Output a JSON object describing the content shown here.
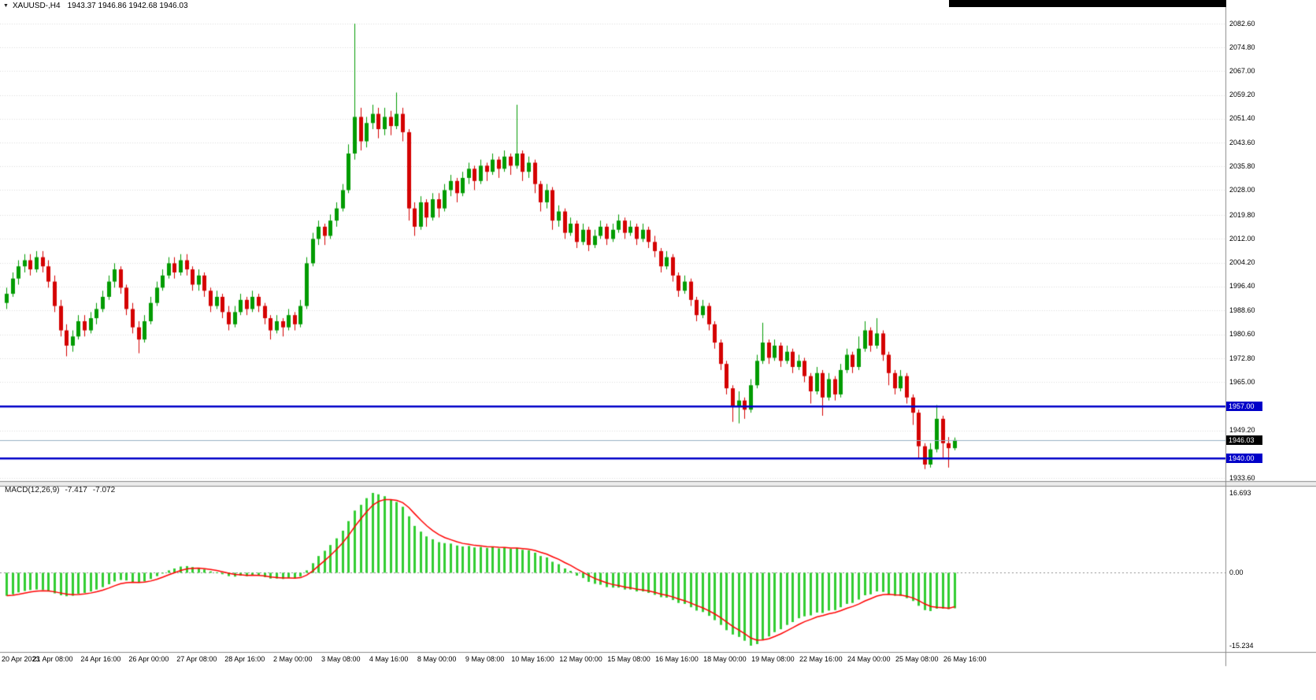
{
  "header": {
    "symbol_period": "XAUUSD-,H4",
    "ohlc_text": "1943.37 1946.86 1942.68 1946.03"
  },
  "colors": {
    "background": "#ffffff",
    "bull": "#009b00",
    "bear": "#d40000",
    "hline": "#0000c8",
    "hline_tag_bg": "#0000c8",
    "current_tag_bg": "#000000",
    "current_line": "#97b0c4",
    "grid": "#dcdcdc",
    "macd_hist": "#32cd32",
    "macd_signal": "#ff0000",
    "zero_line": "#8c8c8c",
    "separator": "#8a8a8a",
    "divider_fill": "#ececec",
    "axis_text": "#000000",
    "top_strip": "#000000"
  },
  "macd_panel": {
    "label": "MACD(12,26,9)",
    "value_main": "-7.417",
    "value_signal": "-7.072",
    "scale": {
      "max": "16.693",
      "zero": "0.00",
      "min": "-15.234"
    }
  },
  "chart_data": {
    "type": "candlestick",
    "title": "XAUUSD-,H4",
    "symbol": "XAUUSD-",
    "timeframe": "H4",
    "current_bar": {
      "open": 1943.37,
      "high": 1946.86,
      "low": 1942.68,
      "close": 1946.03
    },
    "y_axis": {
      "top": 2082.6,
      "bottom": 1933.6,
      "tick_labels": [
        "2082.60",
        "2074.80",
        "2067.00",
        "2059.20",
        "2051.40",
        "2043.60",
        "2035.80",
        "2028.00",
        "2019.80",
        "2012.00",
        "2004.20",
        "1996.40",
        "1988.60",
        "1980.60",
        "1972.80",
        "1965.00",
        "1949.20",
        "1933.60"
      ]
    },
    "x_axis": {
      "bars_per_label": 8,
      "tick_labels": [
        "20 Apr 2023",
        "21 Apr 08:00",
        "24 Apr 16:00",
        "26 Apr 00:00",
        "27 Apr 08:00",
        "28 Apr 16:00",
        "2 May 00:00",
        "3 May 08:00",
        "4 May 16:00",
        "8 May 00:00",
        "9 May 08:00",
        "10 May 16:00",
        "12 May 00:00",
        "15 May 08:00",
        "16 May 16:00",
        "18 May 00:00",
        "19 May 08:00",
        "22 May 16:00",
        "24 May 00:00",
        "25 May 08:00",
        "26 May 16:00"
      ]
    },
    "levels": {
      "horizontal_lines": [
        {
          "price": 1957.0,
          "label": "1957.00"
        },
        {
          "price": 1940.0,
          "label": "1940.00"
        }
      ],
      "current_price": {
        "price": 1946.03,
        "label": "1946.03"
      }
    },
    "candles": [
      [
        1991,
        1996,
        1989,
        1994
      ],
      [
        1994,
        2001,
        1993,
        1999
      ],
      [
        1999,
        2005,
        1997,
        2003
      ],
      [
        2003,
        2007,
        2001,
        2005
      ],
      [
        2005,
        2007,
        2000,
        2002
      ],
      [
        2002,
        2008,
        2001,
        2006
      ],
      [
        2006,
        2008,
        2001,
        2003
      ],
      [
        2003,
        2005,
        1996,
        1998
      ],
      [
        1998,
        2000,
        1988,
        1990
      ],
      [
        1990,
        1992,
        1980,
        1982
      ],
      [
        1982,
        1984,
        1973.5,
        1977
      ],
      [
        1977,
        1982,
        1975,
        1980
      ],
      [
        1980,
        1987,
        1979,
        1985
      ],
      [
        1985,
        1987,
        1980,
        1982
      ],
      [
        1982,
        1988,
        1981,
        1986
      ],
      [
        1986,
        1991,
        1984,
        1989
      ],
      [
        1989,
        1995,
        1988,
        1993
      ],
      [
        1993,
        2000,
        1992,
        1998
      ],
      [
        1998,
        2004,
        1996,
        2002
      ],
      [
        2002,
        2003,
        1994,
        1996
      ],
      [
        1996,
        1997,
        1987,
        1989
      ],
      [
        1989,
        1991,
        1981,
        1983
      ],
      [
        1983,
        1985,
        1974.5,
        1979
      ],
      [
        1979,
        1987,
        1978,
        1985
      ],
      [
        1985,
        1993,
        1984,
        1991
      ],
      [
        1991,
        1998,
        1990,
        1996
      ],
      [
        1996,
        2002,
        1995,
        2000
      ],
      [
        2000,
        2006,
        1999,
        2004
      ],
      [
        2004,
        2006,
        1999,
        2001
      ],
      [
        2001,
        2007,
        2000,
        2005
      ],
      [
        2005,
        2007,
        2000,
        2002
      ],
      [
        2002,
        2003,
        1995,
        1997
      ],
      [
        1997,
        2002,
        1995,
        2000
      ],
      [
        2000,
        2001,
        1993,
        1995
      ],
      [
        1995,
        1996,
        1988,
        1990
      ],
      [
        1990,
        1995,
        1989,
        1993
      ],
      [
        1993,
        1994,
        1986,
        1988
      ],
      [
        1988,
        1990,
        1982,
        1984
      ],
      [
        1984,
        1990,
        1983,
        1988
      ],
      [
        1988,
        1994,
        1987,
        1992
      ],
      [
        1992,
        1993,
        1987,
        1989
      ],
      [
        1989,
        1995,
        1988,
        1993
      ],
      [
        1993,
        1994,
        1988,
        1990
      ],
      [
        1990,
        1991,
        1984,
        1986
      ],
      [
        1986,
        1987,
        1979,
        1982
      ],
      [
        1982,
        1987,
        1981,
        1985
      ],
      [
        1985,
        1986,
        1980,
        1983
      ],
      [
        1983,
        1989,
        1982,
        1987
      ],
      [
        1987,
        1988,
        1982,
        1984
      ],
      [
        1984,
        1992,
        1983,
        1990
      ],
      [
        1990,
        2006,
        1989,
        2004
      ],
      [
        2004,
        2014,
        2003,
        2012
      ],
      [
        2012,
        2018,
        2010,
        2016
      ],
      [
        2016,
        2017,
        2010,
        2013
      ],
      [
        2013,
        2020,
        2012,
        2018
      ],
      [
        2018,
        2024,
        2016,
        2022
      ],
      [
        2022,
        2030,
        2021,
        2028
      ],
      [
        2028,
        2043,
        2027,
        2040
      ],
      [
        2040,
        2082.6,
        2038,
        2052
      ],
      [
        2052,
        2055,
        2041,
        2044
      ],
      [
        2044,
        2052,
        2042,
        2050
      ],
      [
        2050,
        2056,
        2048,
        2053
      ],
      [
        2053,
        2055,
        2045,
        2048
      ],
      [
        2048,
        2055,
        2046,
        2052
      ],
      [
        2052,
        2054,
        2046,
        2049
      ],
      [
        2049,
        2060,
        2048,
        2053
      ],
      [
        2053,
        2055,
        2044,
        2047
      ],
      [
        2047,
        2048,
        2018,
        2022
      ],
      [
        2022,
        2024,
        2013,
        2016
      ],
      [
        2016,
        2026,
        2015,
        2024
      ],
      [
        2024,
        2025,
        2016,
        2019
      ],
      [
        2019,
        2027,
        2018,
        2025
      ],
      [
        2025,
        2027,
        2019,
        2022
      ],
      [
        2022,
        2030,
        2021,
        2028
      ],
      [
        2028,
        2033,
        2026,
        2031
      ],
      [
        2031,
        2032,
        2024,
        2027
      ],
      [
        2027,
        2034,
        2026,
        2032
      ],
      [
        2032,
        2037,
        2030,
        2035
      ],
      [
        2035,
        2036,
        2028,
        2031
      ],
      [
        2031,
        2038,
        2030,
        2036
      ],
      [
        2036,
        2037,
        2031,
        2034
      ],
      [
        2034,
        2040,
        2033,
        2038
      ],
      [
        2038,
        2039,
        2032,
        2035
      ],
      [
        2035,
        2041,
        2034,
        2039
      ],
      [
        2039,
        2040,
        2033,
        2036
      ],
      [
        2036,
        2056,
        2035,
        2040
      ],
      [
        2040,
        2041,
        2031,
        2034
      ],
      [
        2034,
        2039,
        2032,
        2037
      ],
      [
        2037,
        2038,
        2027,
        2030
      ],
      [
        2030,
        2031,
        2021,
        2024
      ],
      [
        2024,
        2030,
        2022,
        2028
      ],
      [
        2028,
        2029,
        2015,
        2018
      ],
      [
        2018,
        2023,
        2016,
        2021
      ],
      [
        2021,
        2022,
        2012,
        2014
      ],
      [
        2014,
        2019,
        2013,
        2017
      ],
      [
        2017,
        2018,
        2009,
        2011
      ],
      [
        2011,
        2017,
        2010,
        2015
      ],
      [
        2015,
        2016,
        2008,
        2010
      ],
      [
        2010,
        2015,
        2009,
        2013
      ],
      [
        2013,
        2018,
        2012,
        2016
      ],
      [
        2016,
        2017,
        2010,
        2012
      ],
      [
        2012,
        2017,
        2011,
        2015
      ],
      [
        2015,
        2020,
        2014,
        2018
      ],
      [
        2018,
        2019,
        2012,
        2014
      ],
      [
        2014,
        2018,
        2013,
        2016
      ],
      [
        2016,
        2017,
        2010,
        2012
      ],
      [
        2012,
        2017,
        2011,
        2015
      ],
      [
        2015,
        2016,
        2009,
        2011
      ],
      [
        2011,
        2013,
        2006,
        2008
      ],
      [
        2008,
        2009,
        2001,
        2003
      ],
      [
        2003,
        2008,
        2002,
        2006
      ],
      [
        2006,
        2007,
        1998,
        2000
      ],
      [
        2000,
        2001,
        1993,
        1995
      ],
      [
        1995,
        2000,
        1994,
        1998
      ],
      [
        1998,
        1999,
        1990,
        1992
      ],
      [
        1992,
        1993,
        1985,
        1987
      ],
      [
        1987,
        1992,
        1986,
        1990
      ],
      [
        1990,
        1991,
        1982,
        1984
      ],
      [
        1984,
        1985,
        1976,
        1978
      ],
      [
        1978,
        1979,
        1969,
        1971
      ],
      [
        1971,
        1972,
        1961,
        1963
      ],
      [
        1963,
        1964,
        1952,
        1957
      ],
      [
        1957,
        1962,
        1951.5,
        1959
      ],
      [
        1959,
        1960,
        1953,
        1956
      ],
      [
        1956,
        1966,
        1955,
        1964
      ],
      [
        1964,
        1974,
        1963,
        1972
      ],
      [
        1972,
        1984.5,
        1971,
        1978
      ],
      [
        1978,
        1979,
        1971,
        1973
      ],
      [
        1973,
        1979,
        1972,
        1977
      ],
      [
        1977,
        1978,
        1970,
        1972
      ],
      [
        1972,
        1977,
        1971,
        1975
      ],
      [
        1975,
        1976,
        1968,
        1970
      ],
      [
        1970,
        1974,
        1969,
        1972
      ],
      [
        1972,
        1973,
        1965,
        1967
      ],
      [
        1967,
        1968,
        1958,
        1962
      ],
      [
        1962,
        1970,
        1961,
        1968
      ],
      [
        1968,
        1969,
        1954,
        1960
      ],
      [
        1960,
        1968,
        1959,
        1966
      ],
      [
        1966,
        1967,
        1959,
        1961
      ],
      [
        1961,
        1971,
        1960,
        1969
      ],
      [
        1969,
        1976,
        1968,
        1974
      ],
      [
        1974,
        1975,
        1968,
        1970
      ],
      [
        1970,
        1980,
        1969,
        1976
      ],
      [
        1976,
        1985,
        1975,
        1982
      ],
      [
        1982,
        1983,
        1975,
        1977
      ],
      [
        1977,
        1986,
        1976,
        1981
      ],
      [
        1981,
        1982,
        1972,
        1974
      ],
      [
        1974,
        1975,
        1964,
        1968
      ],
      [
        1968,
        1969,
        1961,
        1963
      ],
      [
        1963,
        1969,
        1962,
        1967
      ],
      [
        1967,
        1968,
        1958,
        1960
      ],
      [
        1960,
        1961,
        1951,
        1955
      ],
      [
        1955,
        1956,
        1940,
        1944
      ],
      [
        1944,
        1945,
        1936.5,
        1938
      ],
      [
        1938,
        1945,
        1937,
        1943
      ],
      [
        1943,
        1957.5,
        1942,
        1953
      ],
      [
        1953,
        1954,
        1940,
        1945
      ],
      [
        1945,
        1947,
        1937,
        1943.37
      ],
      [
        1943.37,
        1946.86,
        1942.68,
        1946.03
      ]
    ],
    "macd": {
      "params": [
        12,
        26,
        9
      ],
      "max": 16.693,
      "min": -15.234,
      "last_main": -7.417,
      "last_signal": -7.072,
      "histogram": [
        -4.8,
        -4.5,
        -4.1,
        -3.8,
        -3.6,
        -3.5,
        -3.6,
        -3.9,
        -4.3,
        -4.7,
        -4.9,
        -4.8,
        -4.4,
        -4.2,
        -3.9,
        -3.5,
        -3.0,
        -2.4,
        -1.8,
        -1.5,
        -1.6,
        -1.9,
        -2.1,
        -1.8,
        -1.3,
        -0.7,
        -0.1,
        0.5,
        0.9,
        1.3,
        1.4,
        1.2,
        1.0,
        0.7,
        0.3,
        0.1,
        -0.3,
        -0.7,
        -0.8,
        -0.6,
        -0.7,
        -0.5,
        -0.6,
        -0.9,
        -1.2,
        -1.2,
        -1.3,
        -1.1,
        -1.2,
        -0.8,
        0.5,
        2.0,
        3.5,
        4.6,
        5.8,
        7.2,
        8.8,
        10.8,
        13.0,
        14.2,
        15.6,
        16.693,
        16.4,
        16.0,
        15.3,
        14.8,
        13.8,
        11.8,
        9.8,
        8.6,
        7.6,
        7.0,
        6.4,
        6.2,
        6.1,
        5.7,
        5.5,
        5.6,
        5.3,
        5.4,
        5.2,
        5.4,
        5.1,
        5.2,
        5.0,
        5.2,
        4.8,
        4.7,
        4.2,
        3.5,
        3.2,
        2.3,
        1.8,
        0.9,
        0.4,
        -0.6,
        -1.1,
        -1.9,
        -2.3,
        -2.5,
        -3.0,
        -3.1,
        -3.1,
        -3.5,
        -3.5,
        -3.9,
        -3.9,
        -4.2,
        -4.6,
        -5.1,
        -5.2,
        -5.7,
        -6.3,
        -6.5,
        -7.2,
        -7.9,
        -8.2,
        -9.0,
        -9.9,
        -10.9,
        -12.0,
        -12.9,
        -13.4,
        -14.2,
        -15.234,
        -14.9,
        -14.0,
        -13.3,
        -12.4,
        -11.8,
        -10.9,
        -10.3,
        -9.5,
        -9.1,
        -8.9,
        -8.3,
        -8.4,
        -7.9,
        -7.8,
        -7.2,
        -6.5,
        -6.3,
        -5.6,
        -4.7,
        -4.5,
        -3.9,
        -4.0,
        -4.4,
        -4.8,
        -4.8,
        -5.3,
        -5.9,
        -6.9,
        -7.8,
        -8.0,
        -7.5,
        -7.5,
        -7.6,
        -7.417
      ],
      "signal": [
        -4.8,
        -4.7,
        -4.49,
        -4.25,
        -4.02,
        -3.84,
        -3.75,
        -3.81,
        -3.98,
        -4.23,
        -4.46,
        -4.58,
        -4.52,
        -4.41,
        -4.23,
        -3.97,
        -3.63,
        -3.2,
        -2.71,
        -2.29,
        -2.05,
        -1.99,
        -2.03,
        -1.95,
        -1.72,
        -1.36,
        -0.92,
        -0.42,
        0.04,
        0.48,
        0.8,
        0.94,
        0.96,
        0.87,
        0.67,
        0.47,
        0.2,
        -0.11,
        -0.35,
        -0.44,
        -0.53,
        -0.52,
        -0.55,
        -0.67,
        -0.86,
        -0.98,
        -1.09,
        -1.09,
        -1.13,
        -1.01,
        -0.48,
        0.39,
        1.48,
        2.57,
        3.7,
        4.93,
        6.28,
        7.86,
        9.66,
        11.25,
        12.77,
        14.14,
        14.93,
        15.31,
        15.31,
        15.13,
        14.66,
        13.66,
        12.31,
        11.01,
        9.82,
        8.83,
        7.98,
        7.36,
        6.92,
        6.49,
        6.14,
        5.95,
        5.73,
        5.61,
        5.47,
        5.44,
        5.32,
        5.28,
        5.18,
        5.19,
        5.05,
        4.93,
        4.67,
        4.26,
        3.89,
        3.33,
        2.8,
        2.13,
        1.53,
        0.78,
        0.12,
        -0.58,
        -1.19,
        -1.65,
        -2.12,
        -2.46,
        -2.69,
        -2.97,
        -3.16,
        -3.42,
        -3.58,
        -3.8,
        -4.08,
        -4.44,
        -4.7,
        -5.05,
        -5.49,
        -5.84,
        -6.32,
        -6.87,
        -7.34,
        -7.92,
        -8.61,
        -9.41,
        -10.32,
        -11.22,
        -11.98,
        -12.76,
        -13.63,
        -14.07,
        -14.05,
        -13.79,
        -13.3,
        -12.77,
        -12.12,
        -11.48,
        -10.79,
        -10.2,
        -9.74,
        -9.24,
        -8.94,
        -8.58,
        -8.31,
        -7.92,
        -7.42,
        -7.03,
        -6.53,
        -5.89,
        -5.4,
        -4.88,
        -4.57,
        -4.51,
        -4.61,
        -4.68,
        -4.9,
        -5.25,
        -5.83,
        -6.52,
        -7.04,
        -7.2,
        -7.3,
        -7.41,
        -7.072
      ]
    }
  }
}
